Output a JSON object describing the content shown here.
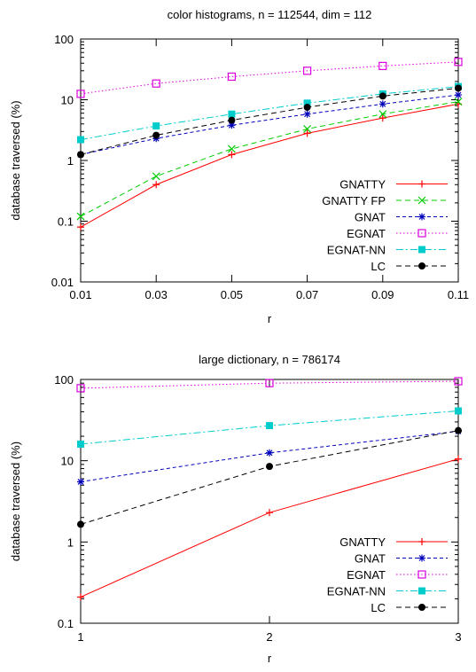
{
  "chart_data": [
    {
      "type": "line",
      "title": "color histograms, n = 112544, dim = 112",
      "xlabel": "r",
      "ylabel": "database traversed (%)",
      "x": [
        0.01,
        0.03,
        0.05,
        0.07,
        0.09,
        0.11
      ],
      "x_tick_labels": [
        "0.01",
        "0.03",
        "0.05",
        "0.07",
        "0.09",
        "0.11"
      ],
      "xlim": [
        0.01,
        0.11
      ],
      "ylim": [
        0.01,
        100
      ],
      "yscale": "log",
      "y_tick_values": [
        0.01,
        0.1,
        1,
        10,
        100
      ],
      "y_tick_labels": [
        "0.01",
        "0.1",
        "1",
        "10",
        "100"
      ],
      "grid": false,
      "legend_position": "bottom-right",
      "series": [
        {
          "name": "GNATTY",
          "color": "#ff0000",
          "dash": "solid",
          "marker": "plus",
          "values": [
            0.08,
            0.4,
            1.25,
            2.8,
            5.0,
            8.5
          ]
        },
        {
          "name": "GNATTY FP",
          "color": "#00cc00",
          "dash": "dashed",
          "marker": "x",
          "values": [
            0.12,
            0.55,
            1.55,
            3.3,
            5.8,
            9.3
          ]
        },
        {
          "name": "GNAT",
          "color": "#0000bb",
          "dash": "short-dash",
          "marker": "star",
          "values": [
            1.25,
            2.3,
            3.8,
            5.8,
            8.5,
            12.0
          ]
        },
        {
          "name": "EGNAT",
          "color": "#dd00dd",
          "dash": "dotted",
          "marker": "open-square",
          "values": [
            12.5,
            18.5,
            24.0,
            30.0,
            36.0,
            42.0
          ]
        },
        {
          "name": "EGNAT-NN",
          "color": "#00cccc",
          "dash": "dash-dot",
          "marker": "filled-square",
          "values": [
            2.2,
            3.7,
            5.8,
            8.8,
            12.5,
            16.5
          ]
        },
        {
          "name": "LC",
          "color": "#000000",
          "dash": "dashed",
          "marker": "filled-circle",
          "values": [
            1.25,
            2.6,
            4.6,
            7.5,
            11.5,
            15.5
          ]
        }
      ]
    },
    {
      "type": "line",
      "title": "large dictionary, n = 786174",
      "xlabel": "r",
      "ylabel": "database traversed (%)",
      "x": [
        1,
        2,
        3
      ],
      "x_tick_labels": [
        "1",
        "2",
        "3"
      ],
      "xlim": [
        1,
        3
      ],
      "ylim": [
        0.1,
        100
      ],
      "yscale": "log",
      "y_tick_values": [
        0.1,
        1,
        10,
        100
      ],
      "y_tick_labels": [
        "0.1",
        "1",
        "10",
        "100"
      ],
      "grid": false,
      "legend_position": "bottom-right",
      "series": [
        {
          "name": "GNATTY",
          "color": "#ff0000",
          "dash": "solid",
          "marker": "plus",
          "values": [
            0.21,
            2.3,
            10.5
          ]
        },
        {
          "name": "GNAT",
          "color": "#0000bb",
          "dash": "short-dash",
          "marker": "star",
          "values": [
            5.5,
            12.5,
            23.0
          ]
        },
        {
          "name": "EGNAT",
          "color": "#dd00dd",
          "dash": "dotted",
          "marker": "open-square",
          "values": [
            78.0,
            90.0,
            95.0
          ]
        },
        {
          "name": "EGNAT-NN",
          "color": "#00cccc",
          "dash": "dash-dot",
          "marker": "filled-square",
          "values": [
            16.0,
            27.0,
            41.0
          ]
        },
        {
          "name": "LC",
          "color": "#000000",
          "dash": "dashed",
          "marker": "filled-circle",
          "values": [
            1.65,
            8.5,
            23.5
          ]
        }
      ]
    }
  ]
}
